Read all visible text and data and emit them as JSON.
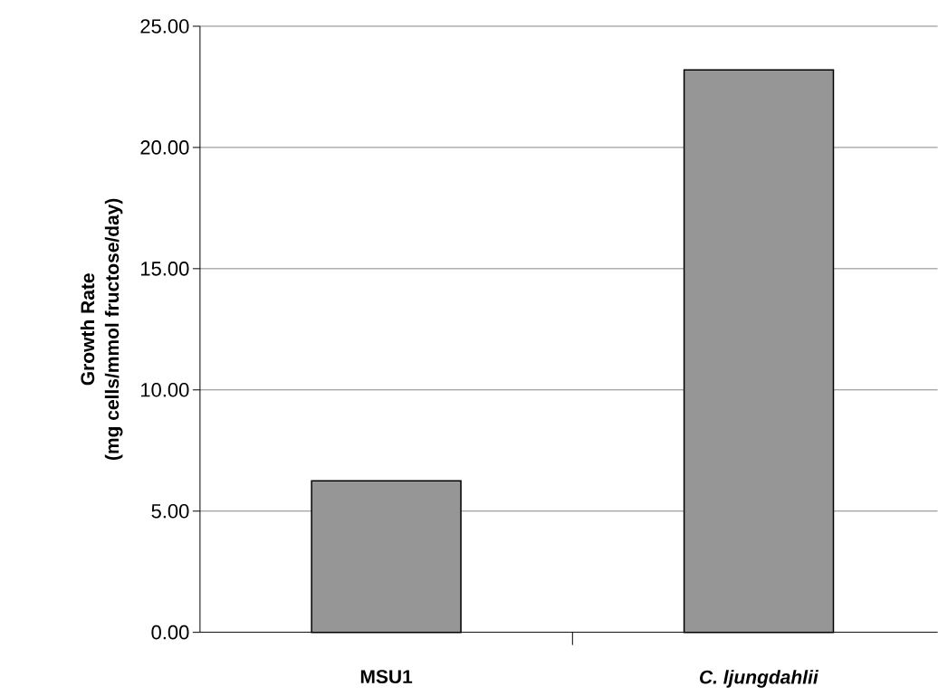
{
  "chart_data": {
    "type": "bar",
    "ylabel": "Growth Rate\n(mg cells/mmol fructose/day)",
    "categories": [
      "MSU1",
      "*C. ljungdahlii*"
    ],
    "values": [
      6.25,
      23.2
    ],
    "color": "#969696",
    "ylim": [
      0,
      25
    ],
    "yticks": [
      {
        "value": 0,
        "label": "0.00"
      },
      {
        "value": 5,
        "label": "5.00"
      },
      {
        "value": 10,
        "label": "10.00"
      },
      {
        "value": 15,
        "label": "15.00"
      },
      {
        "value": 20,
        "label": "20.00"
      },
      {
        "value": 25,
        "label": "25.00"
      }
    ],
    "grid": "y"
  }
}
